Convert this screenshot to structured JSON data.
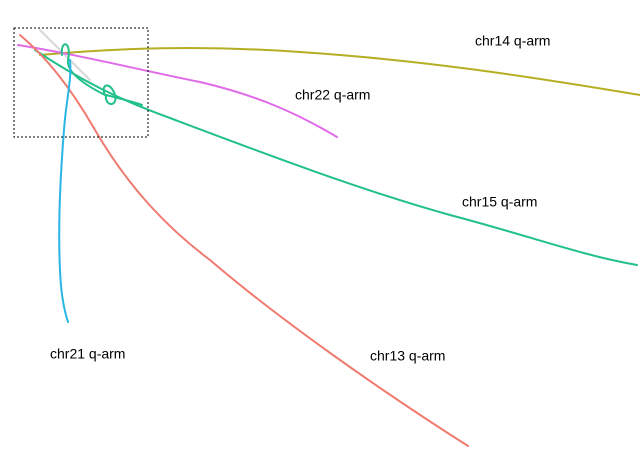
{
  "labels": [
    {
      "text": "chr14 q-arm"
    },
    {
      "text": "chr22 q-arm"
    },
    {
      "text": "chr15 q-arm"
    },
    {
      "text": "chr21 q-arm"
    },
    {
      "text": "chr13 q-arm"
    }
  ]
}
